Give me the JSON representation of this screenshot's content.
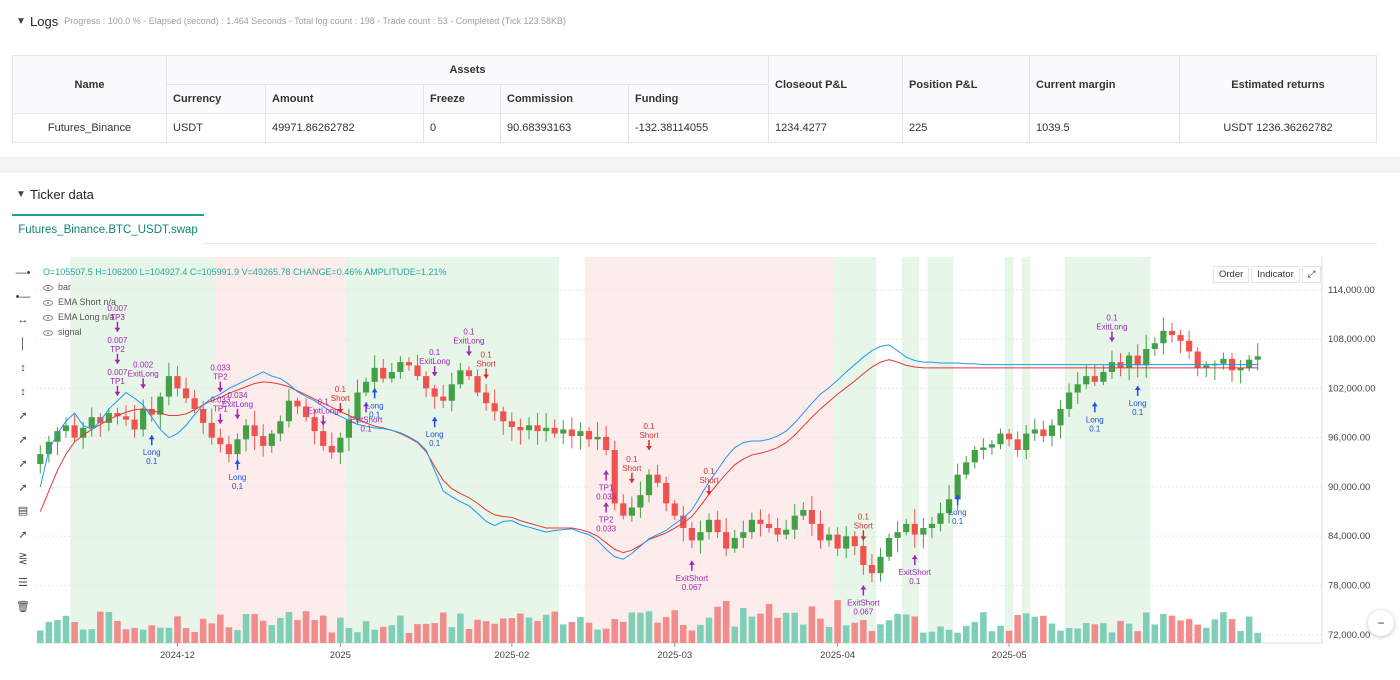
{
  "logs": {
    "title": "Logs",
    "status": "Progress : 100.0 % - Elapsed (second) : 1.464  Seconds - Total log count : 198 - Trade count : 53 - Completed (Tick 123.58KB)"
  },
  "assets_table": {
    "group_header": "Assets",
    "headers": {
      "name": "Name",
      "currency": "Currency",
      "amount": "Amount",
      "freeze": "Freeze",
      "commission": "Commission",
      "funding": "Funding",
      "closeout": "Closeout P&L",
      "position": "Position P&L",
      "margin": "Current margin",
      "returns": "Estimated returns"
    },
    "row": {
      "name": "Futures_Binance",
      "currency": "USDT",
      "amount": "49971.86262782",
      "freeze": "0",
      "commission": "90.68393163",
      "funding": "-132.38114055",
      "closeout": "1234.4277",
      "position": "225",
      "margin": "1039.5",
      "returns": "USDT 1236.36262782"
    }
  },
  "ticker": {
    "title": "Ticker data",
    "tab": "Futures_Binance.BTC_USDT.swap",
    "buttons": {
      "order": "Order",
      "indicator": "Indicator"
    },
    "legend": {
      "ohlc": "O=105507.5  H=106200  L=104927.4  C=105991.9  V=49265.78  CHANGE=0.46%  AMPLITUDE=1.21%",
      "bar": "bar",
      "ema_short": "EMA Short  n/a",
      "ema_long": "EMA Long  n/a",
      "signal": "signal"
    },
    "tools": [
      "cursor-icon",
      "horizontal-line-icon",
      "ray-icon",
      "vertical-line-icon",
      "cross-line-icon",
      "vertical-ray-icon",
      "trend-line-icon",
      "arrow-line-icon",
      "extended-line-icon",
      "info-line-icon",
      "fib-icon",
      "channel-icon",
      "parallel-icon",
      "ruler-icon",
      "trash-icon"
    ]
  },
  "chart_data": {
    "type": "candlestick",
    "y_ticks": [
      "114,000.00",
      "108,000.00",
      "102,000.00",
      "96,000.00",
      "90,000.00",
      "84,000.00",
      "78,000.00",
      "72,000.00"
    ],
    "ylim": [
      71000,
      118000
    ],
    "x_ticks": [
      "2024-12",
      "2025",
      "2025-02",
      "2025-03",
      "2025-04",
      "2025-05"
    ],
    "colors": {
      "up": "#26a69a",
      "down": "#ef5350",
      "up_body": "#43a047",
      "ema_short": "#2196f3",
      "ema_long": "#e53935",
      "signal": "#9c27b0",
      "bg_long": "#e8f5e9",
      "bg_short": "#fdecec"
    },
    "close_path": [
      94000,
      95500,
      96800,
      97500,
      96000,
      97200,
      98500,
      97800,
      99000,
      98600,
      98200,
      97000,
      99500,
      98800,
      101000,
      103500,
      102000,
      100800,
      99500,
      97800,
      96000,
      95200,
      94000,
      95800,
      97500,
      96200,
      95000,
      96500,
      98000,
      100500,
      99800,
      98500,
      96800,
      95000,
      94200,
      96000,
      98200,
      101500,
      102800,
      104500,
      103200,
      104000,
      105200,
      104800,
      103500,
      102000,
      101000,
      100500,
      102500,
      104200,
      103500,
      101500,
      100200,
      99200,
      98000,
      97300,
      96900,
      97500,
      96800,
      97200,
      96500,
      97000,
      96200,
      96800,
      95800,
      96100,
      94500,
      88000,
      86500,
      87500,
      89000,
      91500,
      90500,
      88000,
      86500,
      85000,
      83500,
      84500,
      86000,
      84500,
      82500,
      83800,
      84500,
      86000,
      85500,
      85000,
      84200,
      84800,
      86500,
      87200,
      85500,
      83500,
      84200,
      82500,
      84000,
      82800,
      80500,
      79500,
      81500,
      83800,
      84500,
      85500,
      84200,
      85000,
      85500,
      86800,
      88500,
      91500,
      93000,
      94500,
      94800,
      95200,
      96500,
      95800,
      94500,
      96500,
      97000,
      96200,
      97500,
      99500,
      101500,
      102500,
      103500,
      102800,
      104000,
      105200,
      104500,
      106000,
      104800,
      106800,
      107500,
      109000,
      108500,
      107800,
      106500,
      104500,
      104800,
      105000,
      105600,
      104200,
      104500,
      105500,
      105900
    ],
    "ema_short_path": [
      90000,
      94500,
      96500,
      98000,
      99000,
      97500,
      97000,
      98000,
      99500,
      100500,
      101500,
      100800,
      100000,
      98500,
      97000,
      96000,
      96500,
      97500,
      98800,
      100000,
      100800,
      101300,
      102000,
      102500,
      103000,
      103500,
      104000,
      103500,
      103200,
      102500,
      101600,
      101000,
      100500,
      99800,
      99100,
      98600,
      98100,
      97600,
      97400,
      97200,
      97100,
      96900,
      96600,
      96100,
      95500,
      94500,
      92000,
      89500,
      88800,
      88200,
      87700,
      86800,
      85800,
      85300,
      85800,
      85900,
      85400,
      85100,
      84800,
      84500,
      84700,
      84800,
      84900,
      84500,
      84200,
      83500,
      82400,
      81500,
      81200,
      81900,
      82800,
      83700,
      84200,
      84700,
      85500,
      86200,
      87200,
      88900,
      90600,
      92100,
      93600,
      94800,
      95400,
      95600,
      95600,
      95800,
      96200,
      96800,
      97800,
      99000,
      100200,
      101300,
      102100,
      103000,
      104000,
      104900,
      105800,
      106600,
      107100,
      107300,
      106600,
      105800,
      105400,
      105200,
      105200,
      105100,
      105100,
      105100,
      105000,
      105000,
      104900,
      104900,
      104900,
      104900,
      104900,
      104900,
      104900,
      104900,
      104900,
      104900,
      104900,
      104900,
      104900,
      104900,
      104900,
      104900,
      104900,
      104900,
      104900,
      104900,
      104900,
      104900,
      104900,
      104900,
      104900,
      104900,
      104900,
      104900,
      104900,
      104900,
      104900,
      104900,
      104900
    ],
    "ema_long_path": [
      87000,
      89500,
      92000,
      94000,
      95500,
      96300,
      97000,
      97600,
      98200,
      98700,
      99100,
      99400,
      99500,
      99300,
      99000,
      98700,
      98700,
      98900,
      99400,
      100000,
      100500,
      100900,
      101400,
      101800,
      102200,
      102600,
      102800,
      102700,
      102500,
      102200,
      101700,
      101200,
      100700,
      100200,
      99700,
      99200,
      98700,
      98200,
      97800,
      97400,
      97200,
      96900,
      96500,
      96000,
      95400,
      94300,
      92500,
      90800,
      89800,
      89200,
      88700,
      88000,
      87200,
      86600,
      86400,
      86300,
      85900,
      85600,
      85300,
      85000,
      85000,
      85000,
      85000,
      84800,
      84500,
      84000,
      83200,
      82400,
      82000,
      82300,
      82900,
      83600,
      84000,
      84400,
      85000,
      85600,
      86400,
      87700,
      89100,
      90400,
      91600,
      92700,
      93400,
      93900,
      94100,
      94400,
      94800,
      95400,
      96300,
      97400,
      98500,
      99500,
      100400,
      101300,
      102100,
      102900,
      103800,
      104600,
      105200,
      105500,
      105200,
      104800,
      104600,
      104500,
      104500,
      104500,
      104500,
      104500,
      104500,
      104500,
      104500,
      104500,
      104500,
      104500,
      104500,
      104500,
      104500,
      104500,
      104500,
      104500,
      104500,
      104500,
      104500,
      104500,
      104500,
      104500,
      104500,
      104500,
      104500,
      104500,
      104500,
      104500,
      104500,
      104500,
      104500,
      104500,
      104500,
      104500,
      104500,
      104500,
      104500,
      104500,
      104500
    ],
    "signals": [
      {
        "label": "Long",
        "qty": "0.1",
        "kind": "long",
        "i": 13
      },
      {
        "label": "Long",
        "qty": "0.1",
        "kind": "long",
        "i": 23
      },
      {
        "label": "ExitLong",
        "qty": "0.002",
        "kind": "exit",
        "i": 12
      },
      {
        "label": "TP1",
        "qty": "0.007",
        "kind": "tp",
        "i": 9
      },
      {
        "label": "TP2",
        "qty": "0.007",
        "kind": "tp",
        "i": 9
      },
      {
        "label": "TP3",
        "qty": "0.007",
        "kind": "tp",
        "i": 9
      },
      {
        "label": "TP1",
        "qty": "0.033",
        "kind": "tp",
        "i": 21
      },
      {
        "label": "TP2",
        "qty": "0.033",
        "kind": "tp",
        "i": 21
      },
      {
        "label": "ExitLong",
        "qty": "0.034",
        "kind": "exit",
        "i": 23
      },
      {
        "label": "ExitLong",
        "qty": "0.1",
        "kind": "exit",
        "i": 33
      },
      {
        "label": "Short",
        "qty": "0.1",
        "kind": "short",
        "i": 35
      },
      {
        "label": "ExitShort",
        "qty": "0.1",
        "kind": "exitshort",
        "i": 38
      },
      {
        "label": "Long",
        "qty": "0.1",
        "kind": "long",
        "i": 39
      },
      {
        "label": "ExitLong",
        "qty": "0.1",
        "kind": "exit",
        "i": 46
      },
      {
        "label": "Long",
        "qty": "0.1",
        "kind": "long",
        "i": 46
      },
      {
        "label": "ExitLong",
        "qty": "0.1",
        "kind": "exit",
        "i": 50
      },
      {
        "label": "Short",
        "qty": "0.1",
        "kind": "short",
        "i": 52
      },
      {
        "label": "TP1",
        "qty": "0.033",
        "kind": "tpup",
        "i": 66
      },
      {
        "label": "TP2",
        "qty": "0.033",
        "kind": "tpup",
        "i": 66
      },
      {
        "label": "Short",
        "qty": "0.1",
        "kind": "short",
        "i": 69
      },
      {
        "label": "Short",
        "qty": "0.1",
        "kind": "short",
        "i": 71
      },
      {
        "label": "ExitShort",
        "qty": "0.067",
        "kind": "exitshort",
        "i": 76
      },
      {
        "label": "Short",
        "qty": "0.1",
        "kind": "short",
        "i": 78
      },
      {
        "label": "ExitShort",
        "qty": "0.067",
        "kind": "exitshort",
        "i": 96
      },
      {
        "label": "Short",
        "qty": "0.1",
        "kind": "short",
        "i": 96
      },
      {
        "label": "ExitShort",
        "qty": "0.1",
        "kind": "exitshort",
        "i": 102
      },
      {
        "label": "Long",
        "qty": "0.1",
        "kind": "long",
        "i": 107
      },
      {
        "label": "Long",
        "qty": "0.1",
        "kind": "long",
        "i": 123
      },
      {
        "label": "ExitLong",
        "qty": "0.1",
        "kind": "exit",
        "i": 125
      },
      {
        "label": "Long",
        "qty": "0.1",
        "kind": "long",
        "i": 128
      }
    ],
    "bg_zones": [
      {
        "kind": "long",
        "from": 4,
        "to": 21
      },
      {
        "kind": "short",
        "from": 21,
        "to": 36
      },
      {
        "kind": "long",
        "from": 36,
        "to": 61
      },
      {
        "kind": "short",
        "from": 64,
        "to": 93
      },
      {
        "kind": "long",
        "from": 93,
        "to": 98
      },
      {
        "kind": "long",
        "from": 101,
        "to": 103
      },
      {
        "kind": "long",
        "from": 104,
        "to": 107
      },
      {
        "kind": "long",
        "from": 113,
        "to": 114
      },
      {
        "kind": "long",
        "from": 115,
        "to": 116
      },
      {
        "kind": "long",
        "from": 120,
        "to": 130
      }
    ]
  }
}
